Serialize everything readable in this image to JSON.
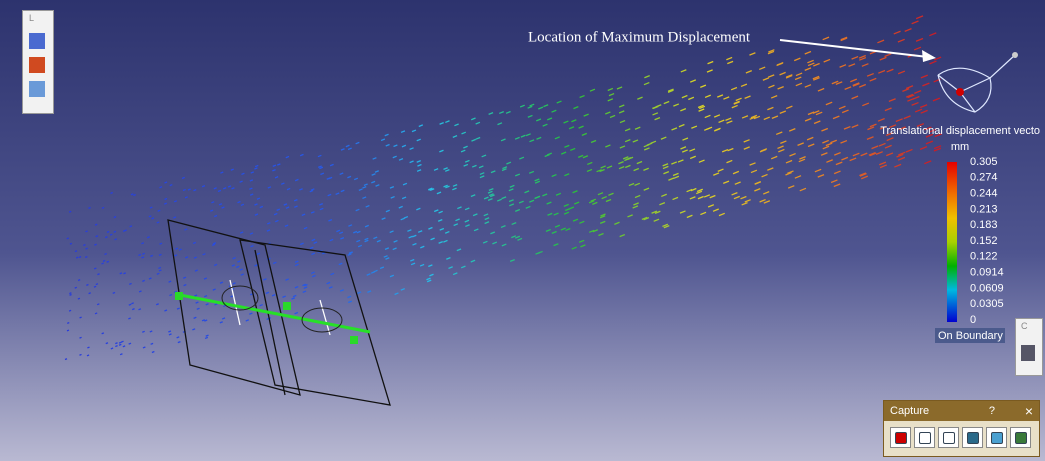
{
  "viewer": {
    "annotation": "Location of Maximum Displacement",
    "legend": {
      "title": "Translational displacement vecto",
      "unit": "mm",
      "labels": [
        "0.305",
        "0.274",
        "0.244",
        "0.213",
        "0.183",
        "0.152",
        "0.122",
        "0.0914",
        "0.0609",
        "0.0305",
        "0"
      ],
      "footer": "On Boundary"
    }
  },
  "toolbars": {
    "left_label": "L",
    "right_label": "C"
  },
  "capture_panel": {
    "title": "Capture",
    "help": "?",
    "close": "×"
  }
}
